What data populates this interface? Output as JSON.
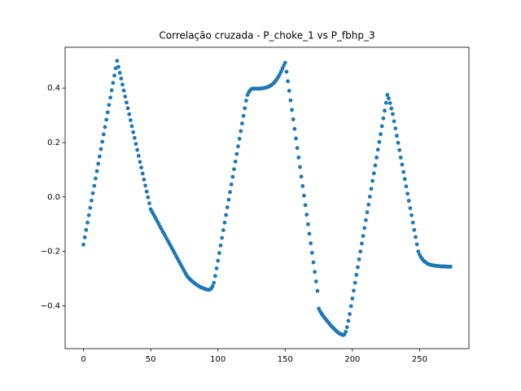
{
  "chart_data": {
    "type": "scatter",
    "title": "Correlação cruzada - P_choke_1 vs P_fbhp_3",
    "color": "#1f77b4",
    "x": [
      0,
      1,
      2,
      3,
      4,
      5,
      6,
      7,
      8,
      9,
      10,
      11,
      12,
      13,
      14,
      15,
      16,
      17,
      18,
      19,
      20,
      21,
      22,
      23,
      24,
      25,
      26,
      27,
      28,
      29,
      30,
      31,
      32,
      33,
      34,
      35,
      36,
      37,
      38,
      39,
      40,
      41,
      42,
      43,
      44,
      45,
      46,
      47,
      48,
      49,
      50,
      51,
      52,
      53,
      54,
      55,
      56,
      57,
      58,
      59,
      60,
      61,
      62,
      63,
      64,
      65,
      66,
      67,
      68,
      69,
      70,
      71,
      72,
      73,
      74,
      75,
      76,
      77,
      78,
      79,
      80,
      81,
      82,
      83,
      84,
      85,
      86,
      87,
      88,
      89,
      90,
      91,
      92,
      93,
      94,
      95,
      96,
      97,
      98,
      99,
      100,
      101,
      102,
      103,
      104,
      105,
      106,
      107,
      108,
      109,
      110,
      111,
      112,
      113,
      114,
      115,
      116,
      117,
      118,
      119,
      120,
      121,
      122,
      123,
      124,
      125,
      126,
      127,
      128,
      129,
      130,
      131,
      132,
      133,
      134,
      135,
      136,
      137,
      138,
      139,
      140,
      141,
      142,
      143,
      144,
      145,
      146,
      147,
      148,
      149,
      150,
      151,
      152,
      153,
      154,
      155,
      156,
      157,
      158,
      159,
      160,
      161,
      162,
      163,
      164,
      165,
      166,
      167,
      168,
      169,
      170,
      171,
      172,
      173,
      174,
      175,
      176,
      177,
      178,
      179,
      180,
      181,
      182,
      183,
      184,
      185,
      186,
      187,
      188,
      189,
      190,
      191,
      192,
      193,
      194,
      195,
      196,
      197,
      198,
      199,
      200,
      201,
      202,
      203,
      204,
      205,
      206,
      207,
      208,
      209,
      210,
      211,
      212,
      213,
      214,
      215,
      216,
      217,
      218,
      219,
      220,
      221,
      222,
      223,
      224,
      225,
      226,
      227,
      228,
      229,
      230,
      231,
      232,
      233,
      234,
      235,
      236,
      237,
      238,
      239,
      240,
      241,
      242,
      243,
      244,
      245,
      246,
      247,
      248,
      249,
      250,
      251,
      252,
      253,
      254,
      255,
      256,
      257,
      258,
      259,
      260,
      261,
      262,
      263,
      264,
      265,
      266,
      267,
      268,
      269,
      270,
      271,
      272,
      273
    ],
    "values": [
      -0.175,
      -0.148,
      -0.121,
      -0.094,
      -0.067,
      -0.04,
      -0.013,
      0.014,
      0.041,
      0.068,
      0.095,
      0.122,
      0.149,
      0.176,
      0.203,
      0.23,
      0.257,
      0.284,
      0.311,
      0.338,
      0.365,
      0.392,
      0.419,
      0.446,
      0.473,
      0.5,
      0.478,
      0.456,
      0.435,
      0.413,
      0.391,
      0.369,
      0.347,
      0.326,
      0.304,
      0.282,
      0.26,
      0.238,
      0.217,
      0.195,
      0.173,
      0.151,
      0.129,
      0.108,
      0.086,
      0.064,
      0.042,
      0.02,
      -0.001,
      -0.023,
      -0.045,
      -0.054,
      -0.063,
      -0.072,
      -0.081,
      -0.09,
      -0.099,
      -0.109,
      -0.118,
      -0.127,
      -0.136,
      -0.145,
      -0.154,
      -0.163,
      -0.172,
      -0.181,
      -0.19,
      -0.199,
      -0.208,
      -0.218,
      -0.227,
      -0.236,
      -0.245,
      -0.254,
      -0.263,
      -0.272,
      -0.281,
      -0.29,
      -0.296,
      -0.301,
      -0.306,
      -0.31,
      -0.314,
      -0.318,
      -0.322,
      -0.325,
      -0.328,
      -0.331,
      -0.333,
      -0.335,
      -0.337,
      -0.339,
      -0.34,
      -0.341,
      -0.34,
      -0.336,
      -0.328,
      -0.315,
      -0.29,
      -0.262,
      -0.234,
      -0.206,
      -0.178,
      -0.15,
      -0.122,
      -0.094,
      -0.066,
      -0.038,
      -0.01,
      0.018,
      0.046,
      0.074,
      0.102,
      0.13,
      0.158,
      0.186,
      0.214,
      0.242,
      0.27,
      0.298,
      0.326,
      0.354,
      0.375,
      0.385,
      0.392,
      0.397,
      0.398,
      0.398,
      0.398,
      0.398,
      0.398,
      0.398,
      0.399,
      0.399,
      0.4,
      0.401,
      0.402,
      0.404,
      0.406,
      0.409,
      0.412,
      0.416,
      0.421,
      0.427,
      0.434,
      0.442,
      0.451,
      0.461,
      0.472,
      0.483,
      0.493,
      0.46,
      0.425,
      0.39,
      0.355,
      0.32,
      0.285,
      0.25,
      0.215,
      0.18,
      0.145,
      0.11,
      0.075,
      0.04,
      0.005,
      -0.03,
      -0.065,
      -0.1,
      -0.135,
      -0.17,
      -0.205,
      -0.24,
      -0.275,
      -0.31,
      -0.345,
      -0.41,
      -0.42,
      -0.428,
      -0.435,
      -0.442,
      -0.448,
      -0.454,
      -0.46,
      -0.466,
      -0.472,
      -0.477,
      -0.482,
      -0.487,
      -0.492,
      -0.496,
      -0.5,
      -0.503,
      -0.505,
      -0.507,
      -0.505,
      -0.495,
      -0.478,
      -0.455,
      -0.43,
      -0.401,
      -0.373,
      -0.344,
      -0.315,
      -0.286,
      -0.258,
      -0.229,
      -0.2,
      -0.171,
      -0.143,
      -0.114,
      -0.085,
      -0.056,
      -0.028,
      0.001,
      0.03,
      0.059,
      0.087,
      0.116,
      0.145,
      0.174,
      0.202,
      0.231,
      0.26,
      0.289,
      0.317,
      0.346,
      0.375,
      0.362,
      0.345,
      0.325,
      0.305,
      0.278,
      0.252,
      0.225,
      0.199,
      0.172,
      0.145,
      0.119,
      0.092,
      0.066,
      0.039,
      0.012,
      -0.014,
      -0.041,
      -0.067,
      -0.094,
      -0.121,
      -0.147,
      -0.174,
      -0.2,
      -0.212,
      -0.221,
      -0.228,
      -0.234,
      -0.238,
      -0.242,
      -0.245,
      -0.247,
      -0.249,
      -0.25,
      -0.251,
      -0.252,
      -0.253,
      -0.253,
      -0.254,
      -0.254,
      -0.255,
      -0.255,
      -0.255,
      -0.255,
      -0.256,
      -0.256,
      -0.256,
      -0.256
    ],
    "xlim": [
      -13.65,
      286.65
    ],
    "xticks": [
      0,
      50,
      100,
      150,
      200,
      250
    ],
    "ylim": [
      -0.557,
      0.55
    ],
    "yticks": [
      {
        "value": -0.4,
        "label": "−0.4"
      },
      {
        "value": -0.2,
        "label": "−0.2"
      },
      {
        "value": 0,
        "label": "0.0"
      },
      0.2,
      0.4
    ]
  }
}
